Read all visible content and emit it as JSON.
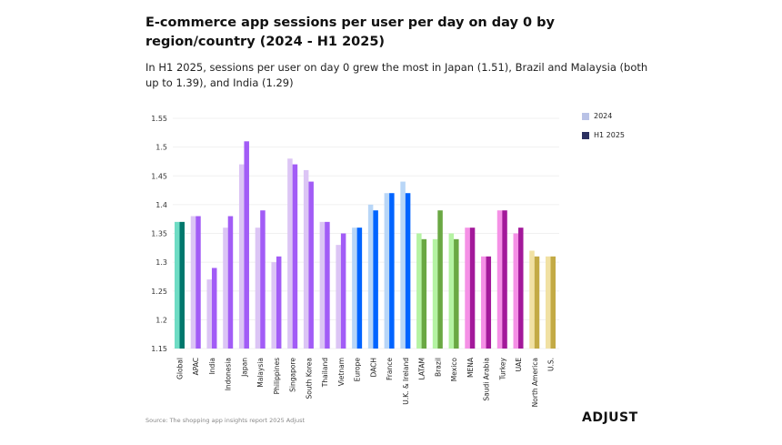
{
  "chart_data": {
    "type": "bar",
    "title": "E-commerce app sessions per user per day on day 0 by region/country (2024 - H1 2025)",
    "subtitle": "In H1 2025, sessions per user on day 0 grew the most in Japan (1.51), Brazil and Malaysia (both up to 1.39), and India (1.29)",
    "categories": [
      "Global",
      "APAC",
      "India",
      "Indonesia",
      "Japan",
      "Malaysia",
      "Philippines",
      "Singapore",
      "South Korea",
      "Thailand",
      "Vietnam",
      "Europe",
      "DACH",
      "France",
      "U.K. & Ireland",
      "LATAM",
      "Brazil",
      "Mexico",
      "MENA",
      "Saudi Arabia",
      "Turkey",
      "UAE",
      "North America",
      "U.S."
    ],
    "series": [
      {
        "name": "2024",
        "values": [
          1.37,
          1.38,
          1.27,
          1.36,
          1.47,
          1.36,
          1.3,
          1.48,
          1.46,
          1.37,
          1.33,
          1.36,
          1.4,
          1.42,
          1.44,
          1.35,
          1.34,
          1.35,
          1.36,
          1.31,
          1.39,
          1.35,
          1.32,
          1.31
        ]
      },
      {
        "name": "H1 2025",
        "values": [
          1.37,
          1.38,
          1.29,
          1.38,
          1.51,
          1.39,
          1.31,
          1.47,
          1.44,
          1.37,
          1.35,
          1.36,
          1.39,
          1.42,
          1.42,
          1.34,
          1.39,
          1.34,
          1.36,
          1.31,
          1.39,
          1.36,
          1.31,
          1.31
        ]
      }
    ],
    "ylim": [
      1.15,
      1.55
    ],
    "yticks": [
      "1.15",
      "1.2",
      "1.25",
      "1.3",
      "1.35",
      "1.4",
      "1.45",
      "1.5",
      "1.55"
    ],
    "grid": true,
    "legend_placement": "top-right",
    "legend_colors": {
      "2024": "#b9c2e6",
      "H1 2025": "#2c3161"
    },
    "region_groups": [
      "global",
      "apac",
      "apac",
      "apac",
      "apac",
      "apac",
      "apac",
      "apac",
      "apac",
      "apac",
      "apac",
      "europe",
      "europe",
      "europe",
      "europe",
      "latam",
      "latam",
      "latam",
      "mena",
      "mena",
      "mena",
      "mena",
      "na",
      "na"
    ],
    "region_colors": {
      "global": {
        "light": "#6fdcc4",
        "dark": "#00786c"
      },
      "apac": {
        "light": "#dcc5f5",
        "dark": "#a25cf6"
      },
      "europe": {
        "light": "#b8d6f7",
        "dark": "#0064ff"
      },
      "latam": {
        "light": "#b5f3a3",
        "dark": "#6aa843"
      },
      "mena": {
        "light": "#f590e6",
        "dark": "#a3199a"
      },
      "na": {
        "light": "#f1e1a3",
        "dark": "#c3aa45"
      }
    }
  },
  "footer": {
    "source": "Source: The shopping app insights report 2025 Adjust",
    "logo": "ADJUST"
  }
}
